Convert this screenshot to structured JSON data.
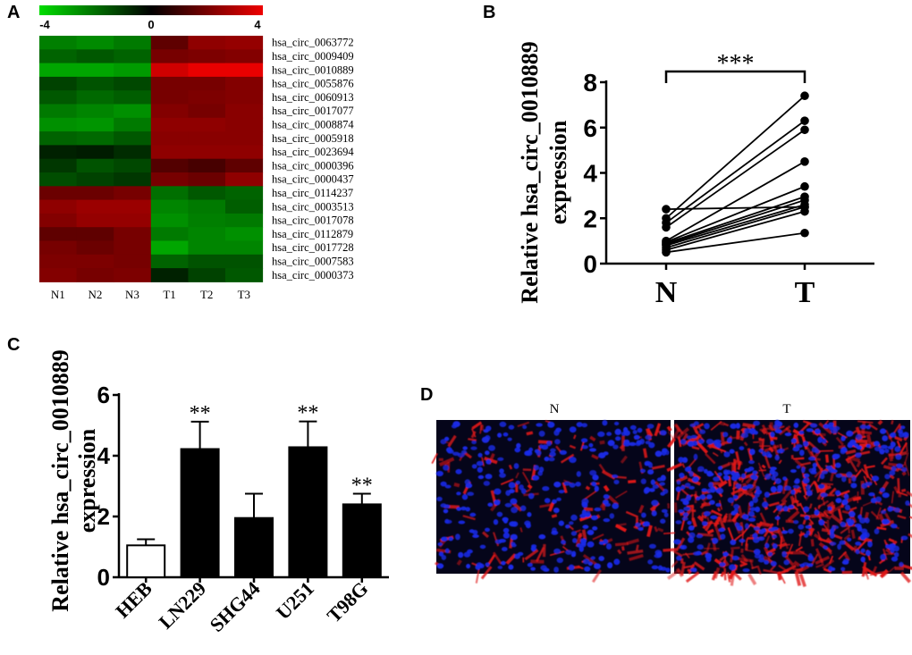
{
  "panels": {
    "A": "A",
    "B": "B",
    "C": "C",
    "D": "D"
  },
  "colors": {
    "low": "#00dd00",
    "mid": "#000000",
    "high": "#ee0000",
    "nuclei": "#1a2ae8",
    "stain": "#e01818"
  },
  "chart_data": [
    {
      "id": "A",
      "type": "heatmap",
      "colorbar": {
        "min": -4,
        "mid": 0,
        "max": 4,
        "tick_labels": [
          "-4",
          "0",
          "4"
        ]
      },
      "columns": [
        "N1",
        "N2",
        "N3",
        "T1",
        "T2",
        "T3"
      ],
      "rows": [
        "hsa_circ_0063772",
        "hsa_circ_0009409",
        "hsa_circ_0010889",
        "hsa_circ_0055876",
        "hsa_circ_0060913",
        "hsa_circ_0017077",
        "hsa_circ_0008874",
        "hsa_circ_0005918",
        "hsa_circ_0023694",
        "hsa_circ_0000396",
        "hsa_circ_0000437",
        "hsa_circ_0114237",
        "hsa_circ_0003513",
        "hsa_circ_0017078",
        "hsa_circ_0112879",
        "hsa_circ_0017728",
        "hsa_circ_0007583",
        "hsa_circ_0000373"
      ],
      "values": [
        [
          -2.3,
          -2.5,
          -2.2,
          1.6,
          2.4,
          2.5
        ],
        [
          -1.8,
          -1.6,
          -1.8,
          2.0,
          2.1,
          2.2
        ],
        [
          -3.0,
          -3.0,
          -2.8,
          3.5,
          3.9,
          3.9
        ],
        [
          -1.2,
          -1.5,
          -1.3,
          2.0,
          2.0,
          2.2
        ],
        [
          -1.6,
          -1.9,
          -1.7,
          2.0,
          2.1,
          2.2
        ],
        [
          -2.2,
          -2.4,
          -2.6,
          2.2,
          2.0,
          2.3
        ],
        [
          -2.6,
          -2.7,
          -2.2,
          2.4,
          2.4,
          2.3
        ],
        [
          -1.8,
          -1.9,
          -1.6,
          2.3,
          2.3,
          2.3
        ],
        [
          -0.6,
          -0.5,
          -0.8,
          2.4,
          2.4,
          2.4
        ],
        [
          -1.0,
          -1.5,
          -1.3,
          1.4,
          1.2,
          1.6
        ],
        [
          -1.4,
          -1.2,
          -1.0,
          2.0,
          1.8,
          2.4
        ],
        [
          1.8,
          1.8,
          2.0,
          -2.0,
          -1.6,
          -1.8
        ],
        [
          2.4,
          2.6,
          2.6,
          -2.4,
          -2.2,
          -1.7
        ],
        [
          2.2,
          2.5,
          2.5,
          -2.6,
          -2.3,
          -2.2
        ],
        [
          1.6,
          1.6,
          2.0,
          -2.2,
          -2.4,
          -2.6
        ],
        [
          2.0,
          1.8,
          2.0,
          -3.0,
          -2.4,
          -2.4
        ],
        [
          2.1,
          2.1,
          2.0,
          -1.8,
          -1.5,
          -1.5
        ],
        [
          2.2,
          2.0,
          2.1,
          -0.6,
          -1.2,
          -1.6
        ]
      ]
    },
    {
      "id": "B",
      "type": "line",
      "title": "",
      "ylabel_line1": "Relative hsa_circ_0010889",
      "ylabel_line2": "expression",
      "categories": [
        "N",
        "T"
      ],
      "ylim": [
        0,
        8
      ],
      "yticks": [
        0,
        2,
        4,
        6,
        8
      ],
      "pairs": [
        [
          2.4,
          2.5
        ],
        [
          2.0,
          7.4
        ],
        [
          1.8,
          6.3
        ],
        [
          1.6,
          5.9
        ],
        [
          1.0,
          4.5
        ],
        [
          0.95,
          3.4
        ],
        [
          0.9,
          2.95
        ],
        [
          0.85,
          2.8
        ],
        [
          0.8,
          2.6
        ],
        [
          0.7,
          2.5
        ],
        [
          0.6,
          2.3
        ],
        [
          0.5,
          1.35
        ]
      ],
      "significance": "***"
    },
    {
      "id": "C",
      "type": "bar",
      "ylabel_line1": "Relative hsa_circ_0010889",
      "ylabel_line2": "expression",
      "categories": [
        "HEB",
        "LN229",
        "SHG44",
        "U251",
        "T98G"
      ],
      "values": [
        1.05,
        4.22,
        1.95,
        4.28,
        2.4
      ],
      "errors": [
        0.2,
        0.9,
        0.8,
        0.85,
        0.35
      ],
      "significance": [
        "",
        "**",
        "",
        "**",
        "**"
      ],
      "ylim": [
        0,
        6
      ],
      "yticks": [
        0,
        2,
        4,
        6
      ]
    }
  ],
  "micrographs": {
    "left_label": "N",
    "right_label": "T"
  }
}
